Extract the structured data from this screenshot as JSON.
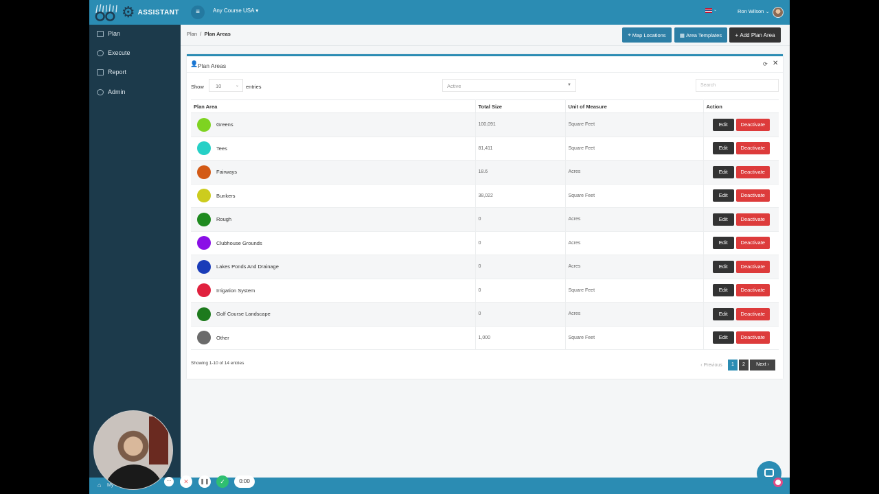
{
  "header": {
    "logo_text": "ASSISTANT",
    "course": "Any Course USA",
    "course_caret": "▾",
    "user_name": "Ron Wilson",
    "user_caret": "⌄"
  },
  "sidebar": {
    "items": [
      {
        "label": "Plan",
        "icon": "folder-icon"
      },
      {
        "label": "Execute",
        "icon": "rocket-icon"
      },
      {
        "label": "Report",
        "icon": "file-icon"
      },
      {
        "label": "Admin",
        "icon": "user-icon"
      }
    ]
  },
  "breadcrumb": {
    "root": "Plan",
    "sep": "/",
    "current": "Plan Areas"
  },
  "toolbar": {
    "map_label": "Map Locations",
    "templates_label": "Area Templates",
    "add_label": "Add Plan Area"
  },
  "card": {
    "title": "Plan Areas",
    "show_label": "Show",
    "entries_label": "entries",
    "page_length": "10",
    "status_value": "Active",
    "search_placeholder": "Search"
  },
  "table": {
    "columns": [
      "Plan Area",
      "Total Size",
      "Unit of Measure",
      "Action"
    ],
    "edit_label": "Edit",
    "deactivate_label": "Deactivate",
    "rows": [
      {
        "name": "Greens",
        "size": "100,091",
        "unit": "Square Feet",
        "color": "#7ed321"
      },
      {
        "name": "Tees",
        "size": "81,411",
        "unit": "Square Feet",
        "color": "#26d0c6"
      },
      {
        "name": "Fairways",
        "size": "18.6",
        "unit": "Acres",
        "color": "#d35a16"
      },
      {
        "name": "Bunkers",
        "size": "38,022",
        "unit": "Square Feet",
        "color": "#cccc1e"
      },
      {
        "name": "Rough",
        "size": "0",
        "unit": "Acres",
        "color": "#1f8a1f"
      },
      {
        "name": "Clubhouse Grounds",
        "size": "0",
        "unit": "Acres",
        "color": "#8a0fe6"
      },
      {
        "name": "Lakes Ponds And Drainage",
        "size": "0",
        "unit": "Acres",
        "color": "#1a3cb8"
      },
      {
        "name": "Irrigation System",
        "size": "0",
        "unit": "Square Feet",
        "color": "#e0213e"
      },
      {
        "name": "Golf Course Landscape",
        "size": "0",
        "unit": "Acres",
        "color": "#1d7a1d"
      },
      {
        "name": "Other",
        "size": "1,000",
        "unit": "Square Feet",
        "color": "#6b6b6b"
      }
    ]
  },
  "footer": {
    "info": "Showing 1-10 of 14 entries",
    "prev": "‹ Previous",
    "pages": [
      "1",
      "2"
    ],
    "next": "Next ›"
  },
  "bottom": {
    "home_label": "My"
  },
  "recorder": {
    "timer": "0:00"
  }
}
